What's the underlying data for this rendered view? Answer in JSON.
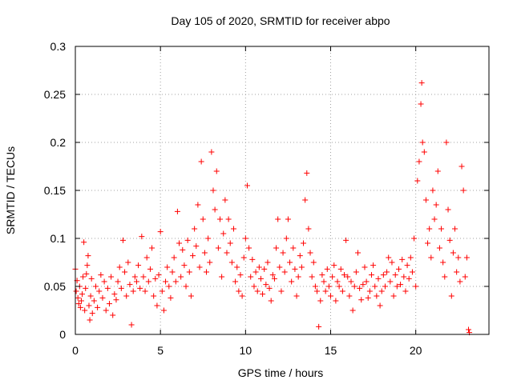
{
  "chart_data": {
    "type": "scatter",
    "title": "Day 105 of 2020, SRMTID for receiver abpo",
    "xlabel": "GPS time / hours",
    "ylabel": "SRMTID / TECUs",
    "xlim": [
      0,
      24.3
    ],
    "ylim": [
      0,
      0.3
    ],
    "x_ticks": [
      0,
      5,
      10,
      15,
      20
    ],
    "x_tick_labels": [
      "0",
      "5",
      "10",
      "15",
      "20"
    ],
    "y_ticks": [
      0,
      0.05,
      0.1,
      0.15,
      0.2,
      0.25,
      0.3
    ],
    "y_tick_labels": [
      "0",
      "0.05",
      "0.1",
      "0.15",
      "0.2",
      "0.25",
      "0.3"
    ],
    "grid": true,
    "marker": "+",
    "series": [
      {
        "name": "SRMTID",
        "color": "#ff0000",
        "points": [
          [
            0.0,
            0.068
          ],
          [
            0.05,
            0.045
          ],
          [
            0.1,
            0.056
          ],
          [
            0.15,
            0.038
          ],
          [
            0.2,
            0.032
          ],
          [
            0.25,
            0.05
          ],
          [
            0.3,
            0.028
          ],
          [
            0.35,
            0.035
          ],
          [
            0.4,
            0.042
          ],
          [
            0.45,
            0.06
          ],
          [
            0.5,
            0.096
          ],
          [
            0.55,
            0.025
          ],
          [
            0.6,
            0.048
          ],
          [
            0.65,
            0.063
          ],
          [
            0.7,
            0.072
          ],
          [
            0.75,
            0.082
          ],
          [
            0.8,
            0.03
          ],
          [
            0.85,
            0.015
          ],
          [
            0.9,
            0.04
          ],
          [
            0.95,
            0.058
          ],
          [
            1.0,
            0.022
          ],
          [
            1.1,
            0.035
          ],
          [
            1.2,
            0.05
          ],
          [
            1.3,
            0.028
          ],
          [
            1.4,
            0.045
          ],
          [
            1.5,
            0.062
          ],
          [
            1.6,
            0.038
          ],
          [
            1.7,
            0.055
          ],
          [
            1.8,
            0.025
          ],
          [
            1.9,
            0.048
          ],
          [
            2.0,
            0.032
          ],
          [
            2.1,
            0.06
          ],
          [
            2.2,
            0.02
          ],
          [
            2.3,
            0.042
          ],
          [
            2.4,
            0.036
          ],
          [
            2.5,
            0.055
          ],
          [
            2.6,
            0.07
          ],
          [
            2.7,
            0.048
          ],
          [
            2.8,
            0.098
          ],
          [
            2.9,
            0.065
          ],
          [
            3.0,
            0.04
          ],
          [
            3.1,
            0.075
          ],
          [
            3.2,
            0.052
          ],
          [
            3.3,
            0.01
          ],
          [
            3.4,
            0.045
          ],
          [
            3.5,
            0.06
          ],
          [
            3.6,
            0.055
          ],
          [
            3.7,
            0.072
          ],
          [
            3.8,
            0.048
          ],
          [
            3.9,
            0.102
          ],
          [
            4.0,
            0.06
          ],
          [
            4.1,
            0.045
          ],
          [
            4.2,
            0.08
          ],
          [
            4.3,
            0.055
          ],
          [
            4.4,
            0.068
          ],
          [
            4.5,
            0.09
          ],
          [
            4.6,
            0.04
          ],
          [
            4.7,
            0.058
          ],
          [
            4.8,
            0.03
          ],
          [
            4.9,
            0.062
          ],
          [
            5.0,
            0.107
          ],
          [
            5.1,
            0.045
          ],
          [
            5.2,
            0.025
          ],
          [
            5.3,
            0.055
          ],
          [
            5.4,
            0.07
          ],
          [
            5.5,
            0.05
          ],
          [
            5.6,
            0.038
          ],
          [
            5.7,
            0.065
          ],
          [
            5.8,
            0.08
          ],
          [
            5.9,
            0.055
          ],
          [
            6.0,
            0.128
          ],
          [
            6.1,
            0.095
          ],
          [
            6.2,
            0.06
          ],
          [
            6.3,
            0.088
          ],
          [
            6.4,
            0.072
          ],
          [
            6.5,
            0.05
          ],
          [
            6.6,
            0.098
          ],
          [
            6.7,
            0.065
          ],
          [
            6.8,
            0.04
          ],
          [
            6.9,
            0.082
          ],
          [
            7.0,
            0.11
          ],
          [
            7.1,
            0.092
          ],
          [
            7.2,
            0.135
          ],
          [
            7.3,
            0.07
          ],
          [
            7.4,
            0.18
          ],
          [
            7.5,
            0.12
          ],
          [
            7.6,
            0.085
          ],
          [
            7.7,
            0.065
          ],
          [
            7.8,
            0.1
          ],
          [
            7.9,
            0.075
          ],
          [
            8.0,
            0.19
          ],
          [
            8.1,
            0.15
          ],
          [
            8.2,
            0.13
          ],
          [
            8.3,
            0.17
          ],
          [
            8.4,
            0.09
          ],
          [
            8.5,
            0.12
          ],
          [
            8.6,
            0.06
          ],
          [
            8.7,
            0.105
          ],
          [
            8.8,
            0.14
          ],
          [
            8.9,
            0.085
          ],
          [
            9.0,
            0.12
          ],
          [
            9.1,
            0.095
          ],
          [
            9.2,
            0.075
          ],
          [
            9.3,
            0.11
          ],
          [
            9.4,
            0.055
          ],
          [
            9.5,
            0.07
          ],
          [
            9.6,
            0.045
          ],
          [
            9.7,
            0.062
          ],
          [
            9.8,
            0.04
          ],
          [
            9.9,
            0.08
          ],
          [
            10.0,
            0.1
          ],
          [
            10.1,
            0.155
          ],
          [
            10.2,
            0.09
          ],
          [
            10.3,
            0.06
          ],
          [
            10.4,
            0.078
          ],
          [
            10.5,
            0.05
          ],
          [
            10.6,
            0.065
          ],
          [
            10.7,
            0.045
          ],
          [
            10.8,
            0.07
          ],
          [
            10.9,
            0.058
          ],
          [
            11.0,
            0.042
          ],
          [
            11.1,
            0.068
          ],
          [
            11.2,
            0.052
          ],
          [
            11.3,
            0.075
          ],
          [
            11.4,
            0.048
          ],
          [
            11.5,
            0.035
          ],
          [
            11.6,
            0.062
          ],
          [
            11.7,
            0.058
          ],
          [
            11.8,
            0.09
          ],
          [
            11.9,
            0.12
          ],
          [
            12.0,
            0.07
          ],
          [
            12.1,
            0.045
          ],
          [
            12.2,
            0.085
          ],
          [
            12.3,
            0.065
          ],
          [
            12.4,
            0.1
          ],
          [
            12.5,
            0.12
          ],
          [
            12.6,
            0.075
          ],
          [
            12.7,
            0.055
          ],
          [
            12.8,
            0.09
          ],
          [
            12.9,
            0.068
          ],
          [
            13.0,
            0.04
          ],
          [
            13.1,
            0.06
          ],
          [
            13.2,
            0.082
          ],
          [
            13.3,
            0.07
          ],
          [
            13.4,
            0.095
          ],
          [
            13.5,
            0.14
          ],
          [
            13.6,
            0.168
          ],
          [
            13.7,
            0.11
          ],
          [
            13.8,
            0.085
          ],
          [
            13.9,
            0.06
          ],
          [
            14.0,
            0.075
          ],
          [
            14.1,
            0.05
          ],
          [
            14.2,
            0.045
          ],
          [
            14.3,
            0.008
          ],
          [
            14.4,
            0.035
          ],
          [
            14.5,
            0.062
          ],
          [
            14.6,
            0.055
          ],
          [
            14.7,
            0.045
          ],
          [
            14.8,
            0.068
          ],
          [
            14.9,
            0.05
          ],
          [
            15.0,
            0.04
          ],
          [
            15.1,
            0.06
          ],
          [
            15.2,
            0.072
          ],
          [
            15.3,
            0.035
          ],
          [
            15.4,
            0.055
          ],
          [
            15.5,
            0.05
          ],
          [
            15.6,
            0.068
          ],
          [
            15.7,
            0.045
          ],
          [
            15.8,
            0.062
          ],
          [
            15.9,
            0.098
          ],
          [
            16.0,
            0.06
          ],
          [
            16.1,
            0.04
          ],
          [
            16.2,
            0.055
          ],
          [
            16.3,
            0.025
          ],
          [
            16.4,
            0.05
          ],
          [
            16.5,
            0.065
          ],
          [
            16.6,
            0.085
          ],
          [
            16.7,
            0.048
          ],
          [
            16.8,
            0.036
          ],
          [
            16.9,
            0.052
          ],
          [
            17.0,
            0.07
          ],
          [
            17.1,
            0.055
          ],
          [
            17.2,
            0.038
          ],
          [
            17.3,
            0.045
          ],
          [
            17.4,
            0.062
          ],
          [
            17.5,
            0.072
          ],
          [
            17.6,
            0.05
          ],
          [
            17.7,
            0.04
          ],
          [
            17.8,
            0.058
          ],
          [
            17.9,
            0.03
          ],
          [
            18.0,
            0.045
          ],
          [
            18.1,
            0.062
          ],
          [
            18.2,
            0.05
          ],
          [
            18.3,
            0.065
          ],
          [
            18.4,
            0.08
          ],
          [
            18.5,
            0.055
          ],
          [
            18.6,
            0.075
          ],
          [
            18.7,
            0.04
          ],
          [
            18.8,
            0.062
          ],
          [
            18.9,
            0.05
          ],
          [
            19.0,
            0.068
          ],
          [
            19.1,
            0.052
          ],
          [
            19.2,
            0.078
          ],
          [
            19.3,
            0.06
          ],
          [
            19.4,
            0.045
          ],
          [
            19.5,
            0.072
          ],
          [
            19.6,
            0.058
          ],
          [
            19.7,
            0.08
          ],
          [
            19.8,
            0.065
          ],
          [
            19.9,
            0.1
          ],
          [
            20.0,
            0.05
          ],
          [
            20.1,
            0.16
          ],
          [
            20.2,
            0.18
          ],
          [
            20.3,
            0.24
          ],
          [
            20.35,
            0.262
          ],
          [
            20.4,
            0.2
          ],
          [
            20.5,
            0.19
          ],
          [
            20.6,
            0.14
          ],
          [
            20.7,
            0.095
          ],
          [
            20.8,
            0.11
          ],
          [
            20.9,
            0.08
          ],
          [
            21.0,
            0.15
          ],
          [
            21.1,
            0.12
          ],
          [
            21.2,
            0.135
          ],
          [
            21.3,
            0.17
          ],
          [
            21.4,
            0.09
          ],
          [
            21.5,
            0.11
          ],
          [
            21.6,
            0.075
          ],
          [
            21.7,
            0.06
          ],
          [
            21.8,
            0.2
          ],
          [
            21.9,
            0.13
          ],
          [
            22.0,
            0.098
          ],
          [
            22.1,
            0.04
          ],
          [
            22.2,
            0.085
          ],
          [
            22.3,
            0.11
          ],
          [
            22.4,
            0.065
          ],
          [
            22.5,
            0.08
          ],
          [
            22.6,
            0.055
          ],
          [
            22.7,
            0.175
          ],
          [
            22.8,
            0.15
          ],
          [
            22.9,
            0.06
          ],
          [
            23.0,
            0.08
          ],
          [
            23.1,
            0.005
          ],
          [
            23.15,
            0.002
          ]
        ]
      }
    ]
  }
}
